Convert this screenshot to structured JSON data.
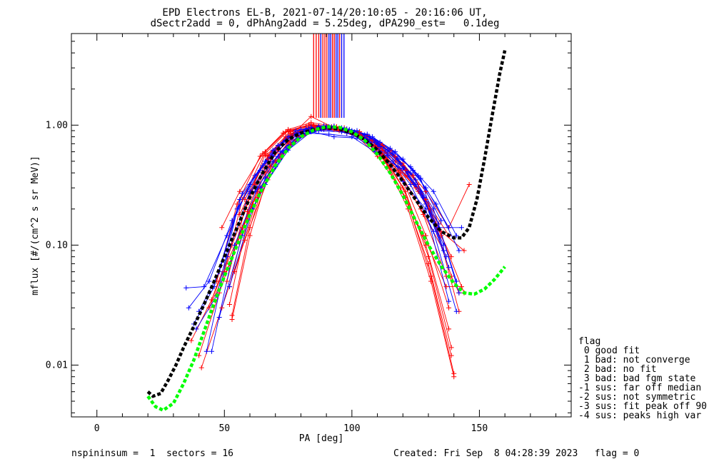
{
  "title_line1": "EPD Electrons EL-B, 2021-07-14/20:10:05 - 20:16:06 UT,",
  "title_line2": "dSectr2add = 0, dPhAng2add = 5.25deg, dPA290_est=   0.1deg",
  "footer": {
    "left": "nspininsum =  1  sectors = 16",
    "right": "Created: Fri Sep  8 04:28:39 2023   flag = 0"
  },
  "legend": {
    "title": "flag",
    "items": [
      " 0 good fit",
      " 1 bad: not converge",
      " 2 bad: no fit",
      " 3 bad: bad fgm state",
      "-1 sus: far off median",
      "-2 sus: not symmetric",
      "-3 sus: fit peak off 90",
      "-4 sus: peaks high var"
    ]
  },
  "colors": {
    "red": "#ff0000",
    "blue": "#0000ff",
    "black": "#000000",
    "green": "#00ff00"
  },
  "chart_data": {
    "type": "line",
    "xlabel": "PA [deg]",
    "ylabel": "mflux [#/(cm^2 s sr MeV)]",
    "xlim": [
      -10,
      186
    ],
    "ylim": [
      0.0037,
      5.8
    ],
    "yscale": "log",
    "xticks": [
      0,
      50,
      100,
      150
    ],
    "yticks": [
      {
        "value": 0.01,
        "label": "0.01"
      },
      {
        "value": 0.1,
        "label": "0.10"
      },
      {
        "value": 1.0,
        "label": "1.00"
      }
    ],
    "series": [
      {
        "color": "black",
        "style": "dashed",
        "x": [
          20,
          22,
          25,
          28,
          31,
          34,
          38,
          42,
          46,
          50,
          55,
          60,
          65,
          70,
          75,
          80,
          85,
          90,
          95,
          100,
          105,
          110,
          115,
          120,
          125,
          130,
          135,
          140,
          143,
          146,
          149,
          152,
          155,
          158,
          160
        ],
        "y": [
          0.006,
          0.0055,
          0.0058,
          0.0075,
          0.01,
          0.014,
          0.021,
          0.032,
          0.05,
          0.08,
          0.14,
          0.25,
          0.4,
          0.6,
          0.76,
          0.86,
          0.92,
          0.95,
          0.93,
          0.86,
          0.76,
          0.62,
          0.47,
          0.34,
          0.24,
          0.17,
          0.13,
          0.115,
          0.115,
          0.14,
          0.24,
          0.52,
          1.2,
          2.7,
          4.2
        ]
      },
      {
        "color": "green",
        "style": "dashed",
        "x": [
          20,
          23,
          26,
          30,
          34,
          38,
          42,
          46,
          50,
          55,
          60,
          65,
          70,
          75,
          80,
          85,
          90,
          95,
          100,
          105,
          110,
          115,
          120,
          125,
          130,
          135,
          140,
          144,
          148,
          152,
          156,
          160
        ],
        "y": [
          0.0055,
          0.0045,
          0.0042,
          0.0048,
          0.007,
          0.011,
          0.019,
          0.033,
          0.055,
          0.1,
          0.18,
          0.3,
          0.46,
          0.64,
          0.8,
          0.91,
          0.97,
          0.96,
          0.88,
          0.75,
          0.57,
          0.4,
          0.26,
          0.16,
          0.1,
          0.067,
          0.048,
          0.04,
          0.039,
          0.043,
          0.052,
          0.066
        ]
      },
      {
        "color": "red",
        "style": "solid",
        "x": [
          53,
          60,
          68,
          77,
          86,
          95,
          104,
          113,
          122,
          131,
          140
        ],
        "y": [
          0.024,
          0.12,
          0.45,
          0.82,
          0.95,
          0.9,
          0.78,
          0.5,
          0.2,
          0.05,
          0.008
        ]
      },
      {
        "color": "red",
        "style": "solid",
        "x": [
          53,
          60,
          68,
          77,
          86,
          95,
          104,
          113,
          122,
          131,
          140
        ],
        "y": [
          0.026,
          0.14,
          0.5,
          0.85,
          0.96,
          0.92,
          0.8,
          0.52,
          0.22,
          0.055,
          0.0085
        ]
      },
      {
        "color": "red",
        "style": "solid",
        "x": [
          52,
          59,
          67,
          76,
          85,
          94,
          103,
          112,
          121,
          130,
          139
        ],
        "y": [
          0.032,
          0.16,
          0.52,
          0.88,
          0.98,
          0.93,
          0.82,
          0.55,
          0.25,
          0.07,
          0.012
        ]
      },
      {
        "color": "red",
        "style": "solid",
        "x": [
          52,
          59,
          67,
          76,
          85,
          94,
          103,
          112,
          121,
          130,
          139
        ],
        "y": [
          0.045,
          0.19,
          0.56,
          0.9,
          1.0,
          0.95,
          0.84,
          0.58,
          0.28,
          0.08,
          0.014
        ]
      },
      {
        "color": "red",
        "style": "solid",
        "x": [
          51,
          58,
          66,
          75,
          84,
          93,
          102,
          111,
          120,
          129,
          138
        ],
        "y": [
          0.05,
          0.2,
          0.58,
          0.9,
          1.02,
          0.96,
          0.85,
          0.6,
          0.3,
          0.1,
          0.02
        ]
      },
      {
        "color": "red",
        "style": "solid",
        "x": [
          50,
          57,
          66,
          75,
          84,
          93,
          102,
          111,
          120,
          129,
          138
        ],
        "y": [
          0.06,
          0.24,
          0.6,
          0.92,
          1.05,
          0.98,
          0.88,
          0.62,
          0.35,
          0.12,
          0.03
        ]
      },
      {
        "color": "red",
        "style": "solid",
        "x": [
          49,
          56,
          65,
          74,
          83,
          92,
          101,
          110,
          119,
          128,
          137
        ],
        "y": [
          0.14,
          0.28,
          0.58,
          0.88,
          1.0,
          0.96,
          0.86,
          0.66,
          0.4,
          0.18,
          0.055
        ]
      },
      {
        "color": "red",
        "style": "solid",
        "x": [
          47,
          55,
          64,
          73,
          82,
          91,
          100,
          109,
          118,
          127,
          136
        ],
        "y": [
          0.05,
          0.22,
          0.55,
          0.86,
          0.97,
          0.95,
          0.84,
          0.68,
          0.42,
          0.2,
          0.09
        ]
      },
      {
        "color": "red",
        "style": "solid",
        "x": [
          45,
          53,
          62,
          71,
          80,
          89,
          98,
          107,
          116,
          125,
          134
        ],
        "y": [
          0.035,
          0.1,
          0.32,
          0.62,
          0.88,
          0.95,
          0.86,
          0.72,
          0.5,
          0.3,
          0.15
        ]
      },
      {
        "color": "red",
        "style": "solid",
        "x": [
          40,
          48,
          57,
          66,
          75,
          84,
          93,
          102,
          111,
          120,
          129,
          138
        ],
        "y": [
          0.012,
          0.04,
          0.14,
          0.4,
          0.72,
          0.9,
          0.92,
          0.85,
          0.7,
          0.46,
          0.24,
          0.12
        ]
      },
      {
        "color": "red",
        "style": "solid",
        "x": [
          37,
          45,
          54,
          63,
          72,
          81,
          90,
          99,
          108,
          117,
          126,
          135,
          144
        ],
        "y": [
          0.016,
          0.035,
          0.1,
          0.28,
          0.55,
          0.82,
          0.95,
          0.9,
          0.74,
          0.5,
          0.28,
          0.13,
          0.09
        ]
      },
      {
        "color": "red",
        "style": "solid",
        "x": [
          41,
          49,
          58,
          67,
          76,
          85,
          94,
          103,
          112,
          121,
          130,
          139
        ],
        "y": [
          0.0095,
          0.03,
          0.11,
          0.35,
          0.7,
          0.92,
          0.97,
          0.88,
          0.68,
          0.42,
          0.2,
          0.08
        ]
      },
      {
        "color": "red",
        "style": "solid",
        "x": [
          44,
          52,
          61,
          70,
          79,
          88,
          97,
          106,
          115,
          124,
          133,
          142
        ],
        "y": [
          0.03,
          0.07,
          0.22,
          0.5,
          0.8,
          0.95,
          0.95,
          0.82,
          0.62,
          0.38,
          0.15,
          0.028
        ]
      },
      {
        "color": "red",
        "style": "solid",
        "x": [
          54,
          63,
          72,
          81,
          90,
          99,
          108,
          117,
          126,
          135,
          144
        ],
        "y": [
          0.06,
          0.25,
          0.58,
          0.88,
          0.98,
          0.9,
          0.75,
          0.55,
          0.32,
          0.12,
          0.04
        ]
      },
      {
        "color": "red",
        "style": "solid",
        "x": [
          66,
          75,
          84,
          93,
          102,
          111,
          120,
          129,
          138,
          146
        ],
        "y": [
          0.56,
          0.78,
          1.18,
          0.95,
          0.88,
          0.65,
          0.48,
          0.28,
          0.14,
          0.32
        ]
      },
      {
        "color": "red",
        "style": "solid",
        "x": [
          58,
          67,
          76,
          85,
          94,
          103,
          112,
          121,
          130,
          139,
          142
        ],
        "y": [
          0.24,
          0.55,
          0.85,
          0.98,
          0.96,
          0.88,
          0.62,
          0.38,
          0.22,
          0.055,
          0.04
        ]
      },
      {
        "color": "red",
        "style": "solid",
        "x": [
          56,
          65,
          74,
          83,
          92,
          101,
          110,
          119,
          128,
          137,
          143
        ],
        "y": [
          0.18,
          0.46,
          0.8,
          0.95,
          0.97,
          0.85,
          0.55,
          0.3,
          0.12,
          0.045,
          0.045
        ]
      },
      {
        "color": "blue",
        "style": "solid",
        "x": [
          35,
          42,
          51,
          60,
          69,
          78,
          87,
          96,
          105,
          114,
          123,
          132,
          141
        ],
        "y": [
          0.044,
          0.045,
          0.12,
          0.32,
          0.62,
          0.9,
          0.98,
          0.92,
          0.78,
          0.56,
          0.32,
          0.13,
          0.028
        ]
      },
      {
        "color": "blue",
        "style": "solid",
        "x": [
          36,
          44,
          53,
          62,
          71,
          80,
          89,
          98,
          107,
          116,
          125,
          134,
          142
        ],
        "y": [
          0.03,
          0.05,
          0.16,
          0.38,
          0.68,
          0.92,
          0.99,
          0.93,
          0.8,
          0.58,
          0.35,
          0.15,
          0.04
        ]
      },
      {
        "color": "blue",
        "style": "solid",
        "x": [
          38,
          46,
          55,
          64,
          73,
          82,
          91,
          100,
          109,
          118,
          127,
          136
        ],
        "y": [
          0.022,
          0.045,
          0.2,
          0.42,
          0.72,
          0.93,
          0.97,
          0.9,
          0.75,
          0.52,
          0.28,
          0.1
        ]
      },
      {
        "color": "blue",
        "style": "solid",
        "x": [
          39,
          47,
          56,
          65,
          74,
          83,
          92,
          101,
          110,
          119,
          128,
          137
        ],
        "y": [
          0.02,
          0.038,
          0.24,
          0.46,
          0.75,
          0.94,
          0.96,
          0.88,
          0.7,
          0.48,
          0.25,
          0.08
        ]
      },
      {
        "color": "blue",
        "style": "solid",
        "x": [
          40,
          48,
          57,
          66,
          75,
          84,
          93,
          102,
          111,
          120,
          129,
          138
        ],
        "y": [
          0.028,
          0.06,
          0.27,
          0.5,
          0.8,
          0.96,
          0.98,
          0.86,
          0.66,
          0.44,
          0.22,
          0.065
        ]
      },
      {
        "color": "blue",
        "style": "solid",
        "x": [
          43,
          51,
          60,
          69,
          78,
          87,
          96,
          105,
          114,
          123,
          132,
          141
        ],
        "y": [
          0.013,
          0.08,
          0.28,
          0.55,
          0.85,
          0.96,
          0.95,
          0.83,
          0.62,
          0.4,
          0.2,
          0.05
        ]
      },
      {
        "color": "blue",
        "style": "solid",
        "x": [
          45,
          54,
          63,
          72,
          81,
          90,
          99,
          108,
          117,
          126,
          135
        ],
        "y": [
          0.013,
          0.1,
          0.3,
          0.6,
          0.88,
          0.97,
          0.92,
          0.8,
          0.6,
          0.38,
          0.16
        ]
      },
      {
        "color": "blue",
        "style": "solid",
        "x": [
          48,
          57,
          66,
          75,
          84,
          93,
          102,
          111,
          120,
          129,
          138
        ],
        "y": [
          0.025,
          0.12,
          0.36,
          0.65,
          0.9,
          0.96,
          0.9,
          0.72,
          0.52,
          0.3,
          0.14
        ]
      },
      {
        "color": "blue",
        "style": "solid",
        "x": [
          52,
          61,
          70,
          79,
          88,
          97,
          106,
          115,
          124,
          133,
          142
        ],
        "y": [
          0.045,
          0.2,
          0.45,
          0.78,
          0.92,
          0.93,
          0.84,
          0.64,
          0.42,
          0.22,
          0.09
        ]
      },
      {
        "color": "blue",
        "style": "solid",
        "x": [
          60,
          69,
          78,
          87,
          96,
          105,
          114,
          123,
          132,
          141
        ],
        "y": [
          0.27,
          0.5,
          0.82,
          0.9,
          0.88,
          0.78,
          0.62,
          0.45,
          0.28,
          0.12
        ]
      },
      {
        "color": "blue",
        "style": "solid",
        "x": [
          62,
          71,
          80,
          89,
          98,
          107,
          116,
          125,
          134,
          143
        ],
        "y": [
          0.28,
          0.55,
          0.85,
          0.92,
          0.86,
          0.72,
          0.5,
          0.32,
          0.14,
          0.14
        ]
      },
      {
        "color": "blue",
        "style": "solid",
        "x": [
          64,
          73,
          82,
          91,
          100,
          109,
          118,
          127,
          136
        ],
        "y": [
          0.3,
          0.6,
          0.86,
          0.84,
          0.8,
          0.6,
          0.45,
          0.36,
          0.09
        ]
      },
      {
        "color": "blue",
        "style": "solid",
        "x": [
          66,
          75,
          84,
          93,
          102,
          111,
          120,
          129,
          138
        ],
        "y": [
          0.32,
          0.62,
          0.88,
          0.8,
          0.78,
          0.6,
          0.34,
          0.2,
          0.034
        ]
      }
    ],
    "vlines": [
      {
        "x": 85.0,
        "color": "red"
      },
      {
        "x": 86.0,
        "color": "red"
      },
      {
        "x": 87.0,
        "color": "red"
      },
      {
        "x": 87.8,
        "color": "blue"
      },
      {
        "x": 88.6,
        "color": "red"
      },
      {
        "x": 89.4,
        "color": "red"
      },
      {
        "x": 90.2,
        "color": "red"
      },
      {
        "x": 91.0,
        "color": "blue"
      },
      {
        "x": 91.7,
        "color": "blue"
      },
      {
        "x": 92.4,
        "color": "red"
      },
      {
        "x": 93.1,
        "color": "red"
      },
      {
        "x": 93.8,
        "color": "blue"
      },
      {
        "x": 94.5,
        "color": "blue"
      },
      {
        "x": 95.2,
        "color": "red"
      },
      {
        "x": 96.0,
        "color": "blue"
      },
      {
        "x": 96.9,
        "color": "blue"
      }
    ],
    "vline_bottom": 1.15
  }
}
